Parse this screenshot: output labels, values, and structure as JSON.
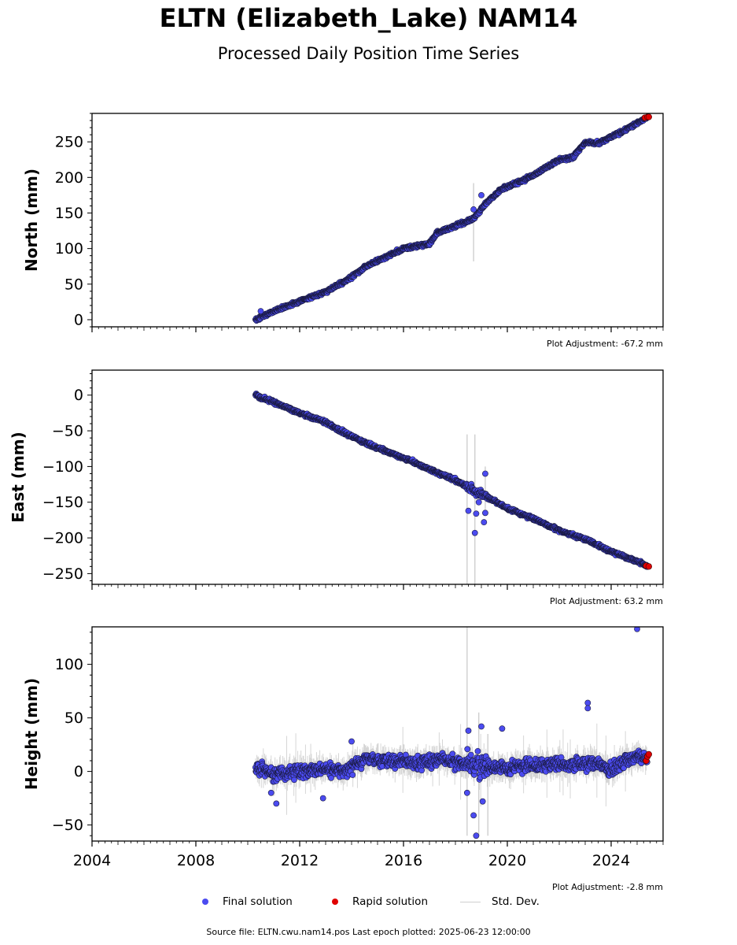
{
  "header": {
    "title": "ELTN (Elizabeth_Lake) NAM14",
    "subtitle": "Processed Daily Position Time Series"
  },
  "legend": {
    "final": "Final solution",
    "rapid": "Rapid solution",
    "stddev": "Std. Dev."
  },
  "footer": {
    "source": "Source file: ELTN.cwu.nam14.pos  Last epoch plotted: 2025-06-23 12:00:00"
  },
  "colors": {
    "final": "#4b4bf0",
    "rapid": "#e00000",
    "stddev": "#cfcfcf"
  },
  "chart_data": [
    {
      "type": "scatter",
      "ylabel": "North (mm)",
      "adjustment": "Plot Adjustment: -67.2 mm",
      "xlim": [
        2004,
        2026
      ],
      "ylim": [
        -10,
        290
      ],
      "yticks": [
        0,
        50,
        100,
        150,
        200,
        250
      ],
      "xticklabels": [],
      "series": [
        {
          "name": "Final solution",
          "x": [
            2010.3,
            2011.0,
            2012.0,
            2013.0,
            2014.0,
            2014.5,
            2015.0,
            2016.0,
            2017.0,
            2017.3,
            2018.0,
            2018.7,
            2019.2,
            2019.8,
            2020.5,
            2021.0,
            2022.0,
            2022.5,
            2023.0,
            2023.5,
            2024.0,
            2024.5,
            2025.0,
            2025.4
          ],
          "y": [
            0,
            12,
            26,
            39,
            60,
            74,
            83,
            100,
            107,
            122,
            132,
            142,
            165,
            184,
            194,
            203,
            225,
            228,
            249,
            248,
            257,
            266,
            276,
            285
          ]
        },
        {
          "name": "Rapid solution",
          "x": [
            2025.3,
            2025.4,
            2025.45
          ],
          "y": [
            284,
            285,
            285
          ]
        }
      ]
    },
    {
      "type": "scatter",
      "ylabel": "East (mm)",
      "adjustment": "Plot Adjustment: 63.2 mm",
      "xlim": [
        2004,
        2026
      ],
      "ylim": [
        -265,
        35
      ],
      "yticks": [
        0,
        -50,
        -100,
        -150,
        -200,
        -250
      ],
      "xticklabels": [],
      "series": [
        {
          "name": "Final solution",
          "x": [
            2010.3,
            2011.0,
            2012.0,
            2013.0,
            2014.0,
            2015.0,
            2016.0,
            2017.0,
            2018.0,
            2018.7,
            2019.5,
            2020.0,
            2021.0,
            2022.0,
            2023.0,
            2024.0,
            2025.0,
            2025.4
          ],
          "y": [
            0,
            -10,
            -25,
            -38,
            -58,
            -74,
            -88,
            -104,
            -119,
            -134,
            -148,
            -159,
            -173,
            -190,
            -202,
            -219,
            -233,
            -240
          ]
        },
        {
          "name": "Rapid solution",
          "x": [
            2025.35,
            2025.45
          ],
          "y": [
            -239,
            -240
          ]
        }
      ]
    },
    {
      "type": "scatter",
      "ylabel": "Height (mm)",
      "adjustment": "Plot Adjustment: -2.8 mm",
      "xlim": [
        2004,
        2026
      ],
      "ylim": [
        -65,
        135
      ],
      "yticks": [
        100,
        50,
        0,
        -50
      ],
      "xticklabels": [
        "2004",
        "2008",
        "2012",
        "2016",
        "2020",
        "2024"
      ],
      "series": [
        {
          "name": "Final solution",
          "x": [
            2010.3,
            2011.0,
            2012.0,
            2013.0,
            2013.8,
            2014.5,
            2015.5,
            2016.5,
            2017.5,
            2018.5,
            2019.0,
            2019.5,
            2020.0,
            2021.0,
            2022.0,
            2022.5,
            2023.0,
            2023.5,
            2024.0,
            2024.5,
            2025.0,
            2025.4
          ],
          "y": [
            2,
            -2,
            0,
            2,
            0,
            12,
            10,
            8,
            11,
            6,
            5,
            3,
            4,
            5,
            7,
            6,
            8,
            6,
            1,
            10,
            15,
            12
          ]
        },
        {
          "name": "Rapid solution",
          "x": [
            2025.35,
            2025.4,
            2025.45
          ],
          "y": [
            10,
            14,
            16
          ]
        }
      ]
    }
  ]
}
